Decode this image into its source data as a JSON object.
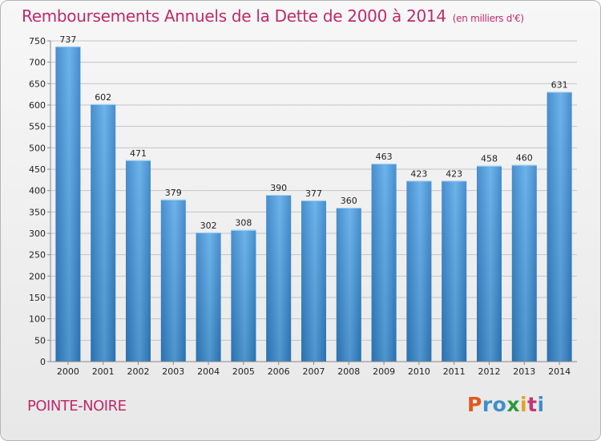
{
  "chart_data": {
    "type": "bar",
    "title": "Remboursements Annuels de la Dette de 2000 à 2014",
    "unit_label": "(en milliers d'€)",
    "categories": [
      "2000",
      "2001",
      "2002",
      "2003",
      "2004",
      "2005",
      "2006",
      "2007",
      "2008",
      "2009",
      "2010",
      "2011",
      "2012",
      "2013",
      "2014"
    ],
    "values": [
      737,
      602,
      471,
      379,
      302,
      308,
      390,
      377,
      360,
      463,
      423,
      423,
      458,
      460,
      631
    ],
    "ylim": [
      0,
      750
    ],
    "yticks": [
      0,
      50,
      100,
      150,
      200,
      250,
      300,
      350,
      400,
      450,
      500,
      550,
      600,
      650,
      700,
      750
    ],
    "xlabel": "",
    "ylabel": "",
    "grid": true,
    "bar_color": "#3d8fd6",
    "bar_color_light": "#6ab6ee"
  },
  "place_name": "POINTE-NOIRE",
  "logo_text": "Proxiti",
  "colors": {
    "title": "#bd2a6c",
    "place": "#bd2a6c"
  }
}
